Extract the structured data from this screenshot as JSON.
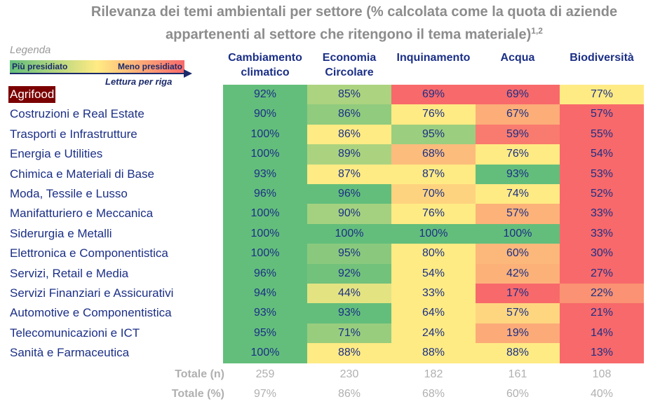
{
  "title_line1": "Rilevanza dei temi ambientali per settore (% calcolata come la quota di aziende",
  "title_line2": "appartenenti al settore che ritengono il tema materiale",
  "title_sup": "1,2",
  "legend": {
    "label": "Legenda",
    "left": "Più presidiato",
    "right": "Meno presidiato",
    "reading": "Lettura per riga"
  },
  "colors": {
    "high": "#63BE7B",
    "mid": "#FFEB84",
    "low": "#F8696B",
    "highlight_bg": "#7B0000"
  },
  "chart_data": {
    "type": "heatmap",
    "color_scale": "per-row, green = highest, yellow = median, red = lowest",
    "columns": [
      "Cambiamento climatico",
      "Economia Circolare",
      "Inquinamento",
      "Acqua",
      "Biodiversità"
    ],
    "rows": [
      {
        "label": "Agrifood",
        "highlight": true,
        "values": [
          92,
          85,
          69,
          69,
          77
        ]
      },
      {
        "label": "Costruzioni e Real Estate",
        "values": [
          90,
          86,
          76,
          67,
          57
        ]
      },
      {
        "label": "Trasporti e Infrastrutture",
        "values": [
          100,
          86,
          95,
          59,
          55
        ]
      },
      {
        "label": "Energia e Utilities",
        "values": [
          100,
          89,
          68,
          76,
          54
        ]
      },
      {
        "label": "Chimica e Materiali di Base",
        "values": [
          93,
          87,
          87,
          93,
          53
        ]
      },
      {
        "label": "Moda, Tessile e Lusso",
        "values": [
          96,
          96,
          70,
          74,
          52
        ]
      },
      {
        "label": "Manifatturiero e Meccanica",
        "values": [
          100,
          90,
          76,
          57,
          33
        ]
      },
      {
        "label": "Siderurgia e Metalli",
        "values": [
          100,
          100,
          100,
          100,
          33
        ]
      },
      {
        "label": "Elettronica e Componentistica",
        "values": [
          100,
          95,
          80,
          60,
          30
        ]
      },
      {
        "label": "Servizi, Retail e Media",
        "values": [
          96,
          92,
          54,
          42,
          27
        ]
      },
      {
        "label": "Servizi Finanziari e Assicurativi",
        "values": [
          94,
          44,
          33,
          17,
          22
        ]
      },
      {
        "label": "Automotive e Componentistica",
        "values": [
          93,
          93,
          64,
          57,
          21
        ]
      },
      {
        "label": "Telecomunicazioni e ICT",
        "values": [
          95,
          71,
          24,
          19,
          14
        ]
      },
      {
        "label": "Sanità e Farmaceutica",
        "values": [
          100,
          88,
          88,
          88,
          13
        ]
      }
    ],
    "totals": [
      {
        "label": "Totale (n)",
        "values": [
          "259",
          "230",
          "182",
          "161",
          "108"
        ]
      },
      {
        "label": "Totale (%)",
        "values": [
          "97%",
          "86%",
          "68%",
          "60%",
          "40%"
        ]
      }
    ]
  }
}
